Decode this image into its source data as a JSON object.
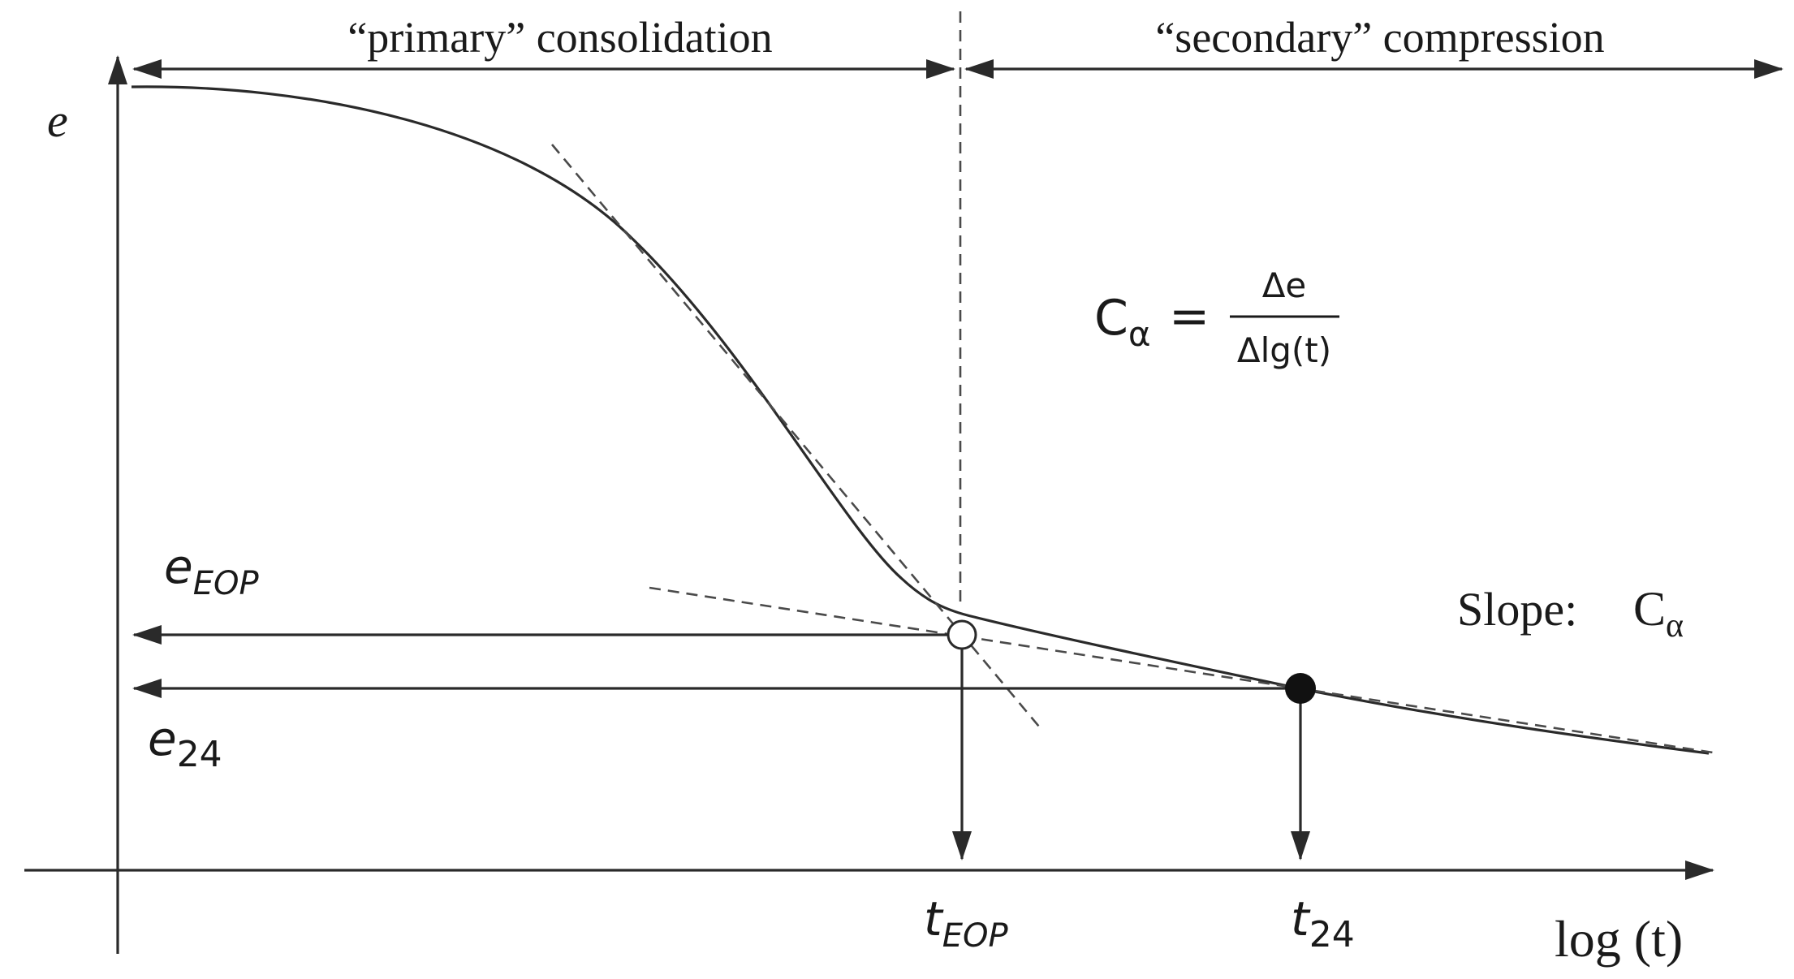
{
  "regions": {
    "primary_label": "“primary” consolidation",
    "secondary_label": "“secondary” compression"
  },
  "axes": {
    "y_label": "e",
    "x_label": "log (t)"
  },
  "levels": {
    "e_eop_main": "e",
    "e_eop_sub": "EOP",
    "e24_main": "e",
    "e24_sub": "24"
  },
  "times": {
    "t_eop_main": "t",
    "t_eop_sub": "EOP",
    "t24_main": "t",
    "t24_sub": "24"
  },
  "formula": {
    "lhs_main": "C",
    "lhs_sub": "α",
    "equals": "=",
    "numerator": "Δe",
    "denominator": "Δlg(t)"
  },
  "slope": {
    "label": "Slope:",
    "symbol_main": "C",
    "symbol_sub": "α"
  },
  "markers": {
    "eop_point": "open-circle",
    "t24_point": "filled-circle"
  },
  "colors": {
    "ink": "#1a1a1a",
    "curve": "#2a2a2a",
    "dash": "#4a4a4a"
  }
}
